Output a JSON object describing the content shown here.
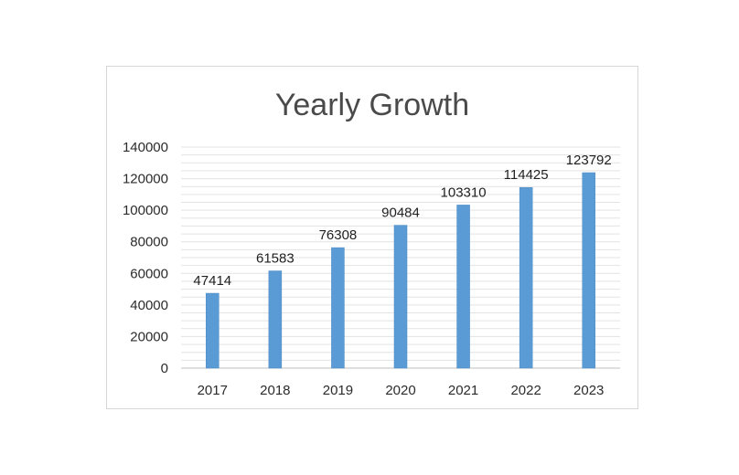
{
  "chart_data": {
    "type": "bar",
    "title": "Yearly Growth",
    "xlabel": "",
    "ylabel": "",
    "categories": [
      "2017",
      "2018",
      "2019",
      "2020",
      "2021",
      "2022",
      "2023"
    ],
    "series": [
      {
        "values": [
          47414,
          61583,
          76308,
          90484,
          103310,
          114425,
          123792
        ]
      }
    ],
    "ylim": [
      0,
      140000
    ],
    "yticks": [
      0,
      20000,
      40000,
      60000,
      80000,
      100000,
      120000,
      140000
    ],
    "minor_gridline_step": 5000,
    "grid": true,
    "legend": "none",
    "data_labels": true,
    "colors": {
      "bar": "#5b9bd5",
      "bar_edge": "#4a88c2",
      "gridline": "#e3e3e3",
      "axis": "#bfbfbf"
    }
  }
}
